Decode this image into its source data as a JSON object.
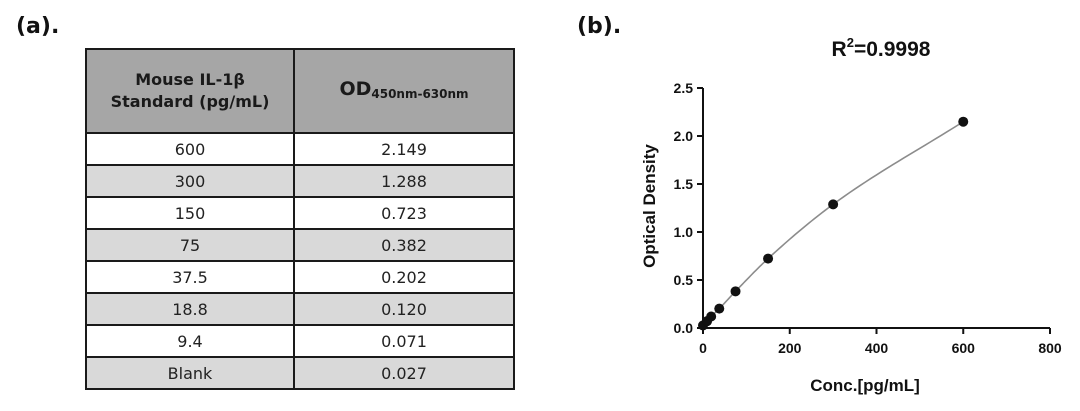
{
  "panel_a_label": "(a).",
  "panel_b_label": "(b).",
  "table": {
    "header_col1_line1": "Mouse IL-1β",
    "header_col1_line2": "Standard (pg/mL)",
    "header_col2_main": "OD",
    "header_col2_sub": "450nm-630nm",
    "rows": [
      {
        "standard": "600",
        "od": "2.149"
      },
      {
        "standard": "300",
        "od": "1.288"
      },
      {
        "standard": "150",
        "od": "0.723"
      },
      {
        "standard": "75",
        "od": "0.382"
      },
      {
        "standard": "37.5",
        "od": "0.202"
      },
      {
        "standard": "18.8",
        "od": "0.120"
      },
      {
        "standard": "9.4",
        "od": "0.071"
      },
      {
        "standard": "Blank",
        "od": "0.027"
      }
    ]
  },
  "chart_data": {
    "type": "scatter",
    "title_prefix": "R",
    "title_sup": "2",
    "title_suffix": "=0.9998",
    "xlabel": "Conc.[pg/mL]",
    "ylabel": "Optical Density",
    "xlim": [
      0,
      800
    ],
    "ylim": [
      0,
      2.5
    ],
    "xticks": [
      0,
      200,
      400,
      600,
      800
    ],
    "xtick_labels": [
      "0",
      "200",
      "400",
      "600",
      "800"
    ],
    "yticks": [
      0,
      0.5,
      1.0,
      1.5,
      2.0,
      2.5
    ],
    "ytick_labels": [
      "0.0",
      "0.5",
      "1.0",
      "1.5",
      "2.0",
      "2.5"
    ],
    "grid": false,
    "points": [
      {
        "x": 0,
        "y": 0.027
      },
      {
        "x": 9.4,
        "y": 0.071
      },
      {
        "x": 18.8,
        "y": 0.12
      },
      {
        "x": 37.5,
        "y": 0.202
      },
      {
        "x": 75,
        "y": 0.382
      },
      {
        "x": 150,
        "y": 0.723
      },
      {
        "x": 300,
        "y": 1.288
      },
      {
        "x": 600,
        "y": 2.149
      }
    ],
    "marker_color": "#111111",
    "curve_color": "#8c8c8c"
  }
}
